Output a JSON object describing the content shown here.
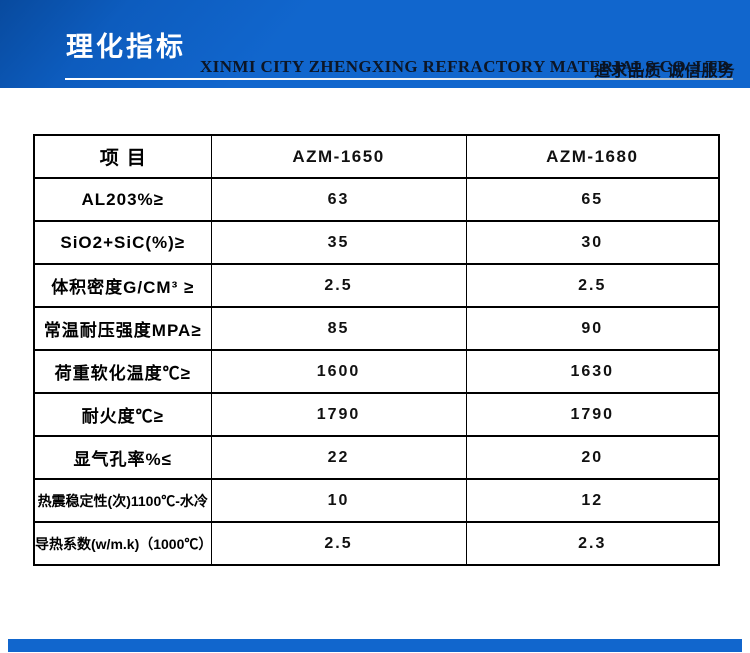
{
  "header": {
    "title": "理化指标",
    "company": "XINMI CITY ZHENGXING REFRACTORY MATERIALS CO.,LTD",
    "slogan": "追求品质  诚信服务"
  },
  "colors": {
    "banner_blue": "#1166cd",
    "banner_dark": "#084a9e",
    "underline_silver": "#9fb0c0",
    "table_border": "#000000",
    "text": "#000000"
  },
  "table": {
    "columns": [
      "项目",
      "AZM-1650",
      "AZM-1680"
    ],
    "rows": [
      {
        "label": "AL203%≥",
        "v1": "63",
        "v2": "65",
        "small": false
      },
      {
        "label": "SiO2+SiC(%)≥",
        "v1": "35",
        "v2": "30",
        "small": false
      },
      {
        "label": "体积密度G/CM³ ≥",
        "v1": "2.5",
        "v2": "2.5",
        "small": false
      },
      {
        "label": "常温耐压强度MPA≥",
        "v1": "85",
        "v2": "90",
        "small": false
      },
      {
        "label": "荷重软化温度℃≥",
        "v1": "1600",
        "v2": "1630",
        "small": false
      },
      {
        "label": "耐火度℃≥",
        "v1": "1790",
        "v2": "1790",
        "small": false
      },
      {
        "label": "显气孔率%≤",
        "v1": "22",
        "v2": "20",
        "small": false
      },
      {
        "label": "热震稳定性(次)1100℃-水冷",
        "v1": "10",
        "v2": "12",
        "small": true
      },
      {
        "label": "导热系数(w/m.k)（1000℃）",
        "v1": "2.5",
        "v2": "2.3",
        "small": true
      }
    ]
  }
}
